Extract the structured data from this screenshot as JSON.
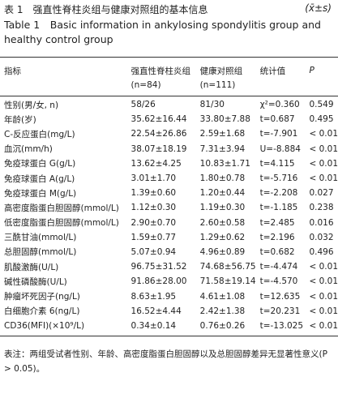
{
  "header": {
    "title": "表 1　强直性脊柱炎组与健康对照组的基本信息",
    "symbol": "(x̄±s)",
    "title_en": "Table 1　Basic information in ankylosing spondylitis group and healthy control group"
  },
  "table": {
    "columns": [
      [
        "指标",
        ""
      ],
      [
        "强直性脊柱炎组",
        "(n=84)"
      ],
      [
        "健康对照组",
        "(n=111)"
      ],
      [
        "统计值",
        ""
      ],
      [
        "P",
        ""
      ]
    ],
    "rows": [
      [
        "性别(男/女, n)",
        "58/26",
        "81/30",
        "χ²=0.360",
        "0.549"
      ],
      [
        "年龄(岁)",
        "35.62±16.44",
        "33.80±7.88",
        "t=0.687",
        "0.495"
      ],
      [
        "C-反应蛋白(mg/L)",
        "22.54±26.86",
        "2.59±1.68",
        "t=-7.901",
        "< 0.01"
      ],
      [
        "血沉(mm/h)",
        "38.07±18.19",
        "7.31±3.94",
        "U=-8.884",
        "< 0.01"
      ],
      [
        "免疫球蛋白 G(g/L)",
        "13.62±4.25",
        "10.83±1.71",
        "t=4.115",
        "< 0.01"
      ],
      [
        "免疫球蛋白 A(g/L)",
        "3.01±1.70",
        "1.80±0.78",
        "t=-5.716",
        "< 0.01"
      ],
      [
        "免疫球蛋白 M(g/L)",
        "1.39±0.60",
        "1.20±0.44",
        "t=-2.208",
        "0.027"
      ],
      [
        "高密度脂蛋白胆固醇(mmol/L)",
        "1.12±0.30",
        "1.19±0.30",
        "t=-1.185",
        "0.238"
      ],
      [
        "低密度脂蛋白胆固醇(mmol/L)",
        "2.90±0.70",
        "2.60±0.58",
        "t=2.485",
        "0.016"
      ],
      [
        "三酰甘油(mmol/L)",
        "1.59±0.77",
        "1.29±0.62",
        "t=2.196",
        "0.032"
      ],
      [
        "总胆固醇(mmol/L)",
        "5.07±0.94",
        "4.96±0.89",
        "t=0.682",
        "0.496"
      ],
      [
        "肌酸激酶(U/L)",
        "96.75±31.52",
        "74.68±56.75",
        "t=-4.474",
        "< 0.01"
      ],
      [
        "碱性磷酸酶(U/L)",
        "91.86±28.00",
        "71.58±19.14",
        "t=-4.570",
        "< 0.01"
      ],
      [
        "肿瘤坏死因子(ng/L)",
        "8.63±1.95",
        "4.61±1.08",
        "t=12.635",
        "< 0.01"
      ],
      [
        "白细胞介素 6(ng/L)",
        "16.52±4.44",
        "2.42±1.38",
        "t=20.231",
        "< 0.01"
      ],
      [
        "CD36(MFI)(×10⁹/L)",
        "0.34±0.14",
        "0.76±0.26",
        "t=-13.025",
        "< 0.01"
      ]
    ]
  },
  "note": "表注：两组受试者性别、年龄、高密度脂蛋白胆固醇以及总胆固醇差异无显著性意义(P > 0.05)。"
}
